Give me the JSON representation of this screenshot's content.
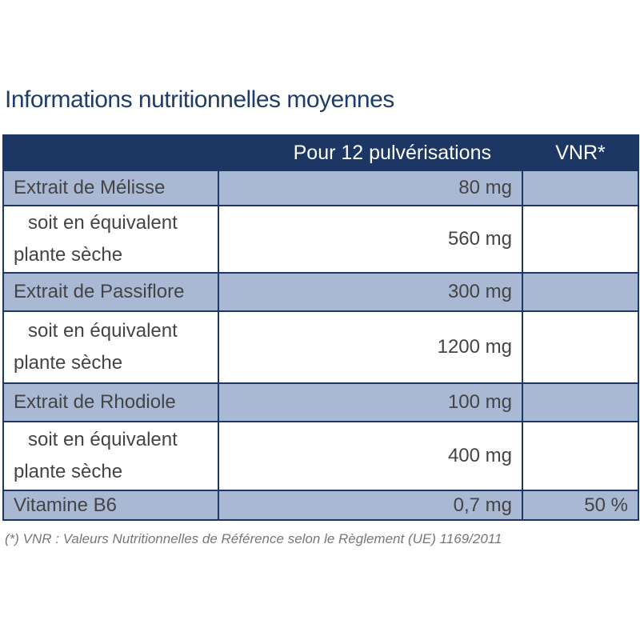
{
  "title": "Informations nutritionnelles moyennes",
  "table": {
    "header": [
      "Pour 12 pulvérisations",
      "VNR*"
    ],
    "rows": [
      {
        "label": [
          "Extrait de Mélisse"
        ],
        "amount": "80 mg"
      },
      {
        "label": [
          "soit en équivalent",
          "plante sèche"
        ],
        "amount": "560 mg"
      },
      {
        "label": [
          "Extrait de Passiflore"
        ],
        "amount": "300 mg"
      },
      {
        "label": [
          "soit en équivalent",
          "plante sèche"
        ],
        "amount": "1200 mg"
      },
      {
        "label": [
          "Extrait de Rhodiole"
        ],
        "amount": "100 mg"
      },
      {
        "label": [
          "soit en équivalent",
          "plante sèche"
        ],
        "amount": "400 mg"
      },
      {
        "label": [
          "Vitamine B6"
        ],
        "amount": "0,7 mg",
        "vnr": "50 %"
      }
    ]
  },
  "footnote": "(*) VNR : Valeurs Nutritionnelles de Référence selon le Règlement (UE) 1169/2011"
}
